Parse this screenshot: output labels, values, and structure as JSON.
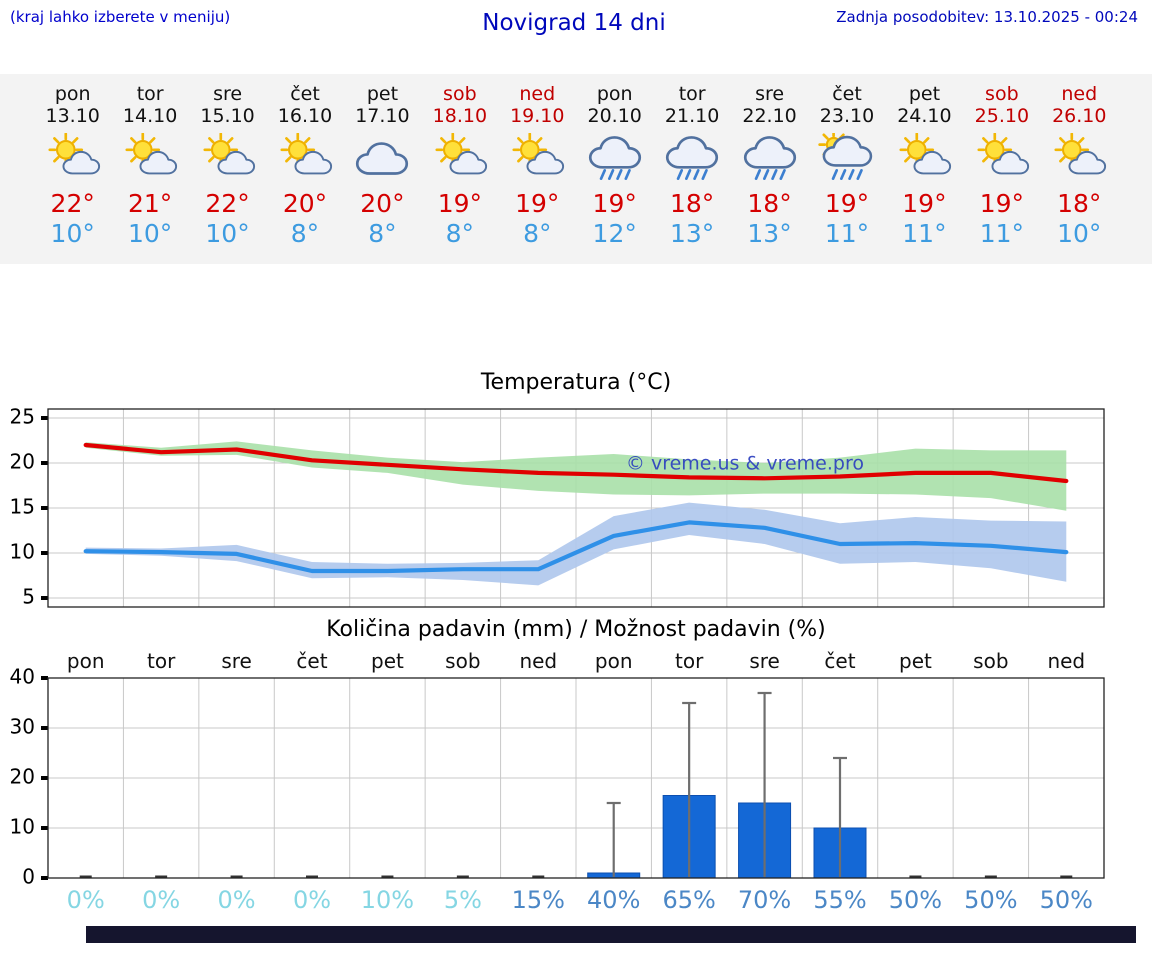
{
  "header": {
    "menu_hint": "(kraj lahko izberete v meniju)",
    "title": "Novigrad 14 dni",
    "last_update": "Zadnja posodobitev: 13.10.2025 - 00:24"
  },
  "colors": {
    "accent_blue": "#0000cc",
    "high_temp": "#d40000",
    "low_temp": "#3d9be0",
    "weekend_red": "#c00000",
    "strip_background": "#f3f3f3"
  },
  "forecast": {
    "days": [
      {
        "name": "pon",
        "date": "13.10",
        "weekend": false,
        "icon": "mostly-sunny",
        "high": "22°",
        "low": "10°"
      },
      {
        "name": "tor",
        "date": "14.10",
        "weekend": false,
        "icon": "mostly-sunny",
        "high": "21°",
        "low": "10°"
      },
      {
        "name": "sre",
        "date": "15.10",
        "weekend": false,
        "icon": "mostly-sunny",
        "high": "22°",
        "low": "10°"
      },
      {
        "name": "čet",
        "date": "16.10",
        "weekend": false,
        "icon": "mostly-sunny",
        "high": "20°",
        "low": "8°"
      },
      {
        "name": "pet",
        "date": "17.10",
        "weekend": false,
        "icon": "cloudy",
        "high": "20°",
        "low": "8°"
      },
      {
        "name": "sob",
        "date": "18.10",
        "weekend": true,
        "icon": "mostly-sunny",
        "high": "19°",
        "low": "8°"
      },
      {
        "name": "ned",
        "date": "19.10",
        "weekend": true,
        "icon": "mostly-sunny",
        "high": "19°",
        "low": "8°"
      },
      {
        "name": "pon",
        "date": "20.10",
        "weekend": false,
        "icon": "rain",
        "high": "19°",
        "low": "12°"
      },
      {
        "name": "tor",
        "date": "21.10",
        "weekend": false,
        "icon": "rain",
        "high": "18°",
        "low": "13°"
      },
      {
        "name": "sre",
        "date": "22.10",
        "weekend": false,
        "icon": "rain",
        "high": "18°",
        "low": "13°"
      },
      {
        "name": "čet",
        "date": "23.10",
        "weekend": false,
        "icon": "rain-sun",
        "high": "19°",
        "low": "11°"
      },
      {
        "name": "pet",
        "date": "24.10",
        "weekend": false,
        "icon": "mostly-sunny",
        "high": "19°",
        "low": "11°"
      },
      {
        "name": "sob",
        "date": "25.10",
        "weekend": true,
        "icon": "mostly-sunny",
        "high": "19°",
        "low": "11°"
      },
      {
        "name": "ned",
        "date": "26.10",
        "weekend": true,
        "icon": "mostly-sunny",
        "high": "18°",
        "low": "10°"
      }
    ]
  },
  "chart_data": [
    {
      "type": "line",
      "title": "Temperatura (°C)",
      "categories": [
        "13.10",
        "14.10",
        "15.10",
        "16.10",
        "17.10",
        "18.10",
        "19.10",
        "20.10",
        "21.10",
        "22.10",
        "23.10",
        "24.10",
        "25.10",
        "26.10"
      ],
      "ylim": [
        4,
        26
      ],
      "yticks": [
        5,
        10,
        15,
        20,
        25
      ],
      "grid": true,
      "legend": false,
      "series": [
        {
          "name": "max-temp",
          "color": "#e00000",
          "values": [
            22,
            21.2,
            21.5,
            20.3,
            19.8,
            19.3,
            18.9,
            18.7,
            18.4,
            18.3,
            18.5,
            18.9,
            18.9,
            18
          ]
        },
        {
          "name": "min-temp",
          "color": "#2f90e8",
          "values": [
            10.2,
            10.1,
            9.9,
            8,
            8,
            8.2,
            8.2,
            11.9,
            13.4,
            12.8,
            11,
            11.1,
            10.8,
            10.1
          ]
        }
      ],
      "bands": [
        {
          "name": "max-temp-range",
          "color": "#a9e0a9",
          "upper": [
            22.3,
            21.7,
            22.4,
            21.4,
            20.6,
            20.1,
            20.6,
            21,
            20.4,
            20,
            20.6,
            21.6,
            21.4,
            21.4
          ],
          "lower": [
            21.7,
            20.8,
            20.9,
            19.5,
            18.9,
            17.6,
            16.9,
            16.5,
            16.4,
            16.6,
            16.6,
            16.5,
            16.1,
            14.7
          ]
        },
        {
          "name": "min-temp-range",
          "color": "#aec6ec",
          "upper": [
            10.6,
            10.5,
            10.9,
            9,
            8.8,
            8.9,
            9.2,
            14.1,
            15.6,
            14.8,
            13.3,
            14,
            13.6,
            13.5
          ],
          "lower": [
            9.9,
            9.7,
            9.1,
            7.2,
            7.3,
            7,
            6.4,
            10.4,
            12,
            11,
            8.8,
            9,
            8.3,
            6.8
          ]
        }
      ],
      "watermark": "© vreme.us & vreme.pro"
    },
    {
      "type": "bar",
      "title": "Količina padavin (mm) / Možnost padavin (%)",
      "categories": [
        "pon",
        "tor",
        "sre",
        "čet",
        "pet",
        "sob",
        "ned",
        "pon",
        "tor",
        "sre",
        "čet",
        "pet",
        "sob",
        "ned"
      ],
      "values": [
        0,
        0,
        0,
        0,
        0,
        0,
        0,
        1,
        16.5,
        15,
        10,
        0,
        0,
        0
      ],
      "whisker_max": [
        0,
        0,
        0,
        0,
        0,
        0,
        0,
        15,
        35,
        37,
        24,
        0,
        0,
        0
      ],
      "probabilities": [
        0,
        0,
        0,
        0,
        10,
        5,
        15,
        40,
        65,
        70,
        55,
        50,
        50,
        50
      ],
      "prob_suffix": "%",
      "prob_threshold": 15,
      "prob_low_color": "#85d6e3",
      "prob_high_color": "#4b87c6",
      "bar_color": "#1468d6",
      "ylim": [
        0,
        40
      ],
      "yticks": [
        0,
        10,
        20,
        30,
        40
      ],
      "grid": true
    }
  ]
}
